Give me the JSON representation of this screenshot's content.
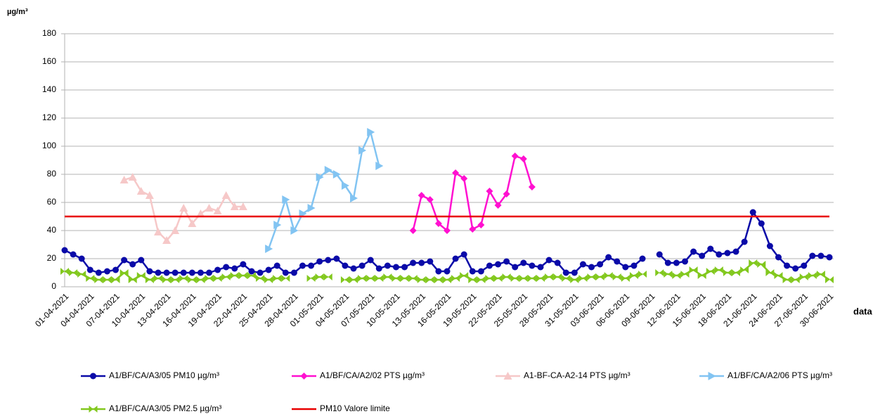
{
  "chart_data": {
    "type": "line",
    "y_label": "µg/m³",
    "x_label": "data",
    "categories": [
      "01-04-2021",
      null,
      null,
      "04-04-2021",
      null,
      null,
      "07-04-2021",
      null,
      null,
      "10-04-2021",
      null,
      null,
      "13-04-2021",
      null,
      null,
      "16-04-2021",
      null,
      null,
      "19-04-2021",
      null,
      null,
      "22-04-2021",
      null,
      null,
      "25-04-2021",
      null,
      null,
      "28-04-2021",
      null,
      null,
      "01-05-2021",
      null,
      null,
      "04-05-2021",
      null,
      null,
      "07-05-2021",
      null,
      null,
      "10-05-2021",
      null,
      null,
      "13-05-2021",
      null,
      null,
      "16-05-2021",
      null,
      null,
      "19-05-2021",
      null,
      null,
      "22-05-2021",
      null,
      null,
      "25-05-2021",
      null,
      null,
      "28-05-2021",
      null,
      null,
      "31-05-2021",
      null,
      null,
      "03-06-2021",
      null,
      null,
      "06-06-2021",
      null,
      null,
      "09-06-2021",
      null,
      null,
      "12-06-2021",
      null,
      null,
      "15-06-2021",
      null,
      null,
      "18-06-2021",
      null,
      null,
      "21-06-2021",
      null,
      null,
      "24-06-2021",
      null,
      null,
      "27-06-2021",
      null,
      null,
      "30-06-2021"
    ],
    "ylim": [
      0,
      180
    ],
    "yticks": [
      0,
      20,
      40,
      60,
      80,
      100,
      120,
      140,
      160,
      180
    ],
    "grid": true,
    "series": [
      {
        "name": "A1/BF/CA/A3/05 PM10 µg/m³",
        "color": "#0a0aa8",
        "marker": "circle",
        "values": [
          26,
          23,
          20,
          12,
          10,
          11,
          12,
          19,
          16,
          19,
          11,
          10,
          10,
          10,
          10,
          10,
          10,
          10,
          12,
          14,
          13,
          16,
          11,
          10,
          12,
          15,
          10,
          10,
          15,
          15,
          18,
          19,
          20,
          15,
          13,
          15,
          19,
          13,
          15,
          14,
          14,
          17,
          17,
          18,
          11,
          11,
          20,
          23,
          11,
          11,
          15,
          16,
          18,
          14,
          17,
          15,
          14,
          19,
          17,
          10,
          10,
          16,
          14,
          16,
          21,
          18,
          14,
          15,
          20,
          null,
          23,
          17,
          17,
          18,
          25,
          22,
          27,
          23,
          24,
          25,
          32,
          53,
          45,
          29,
          21,
          15,
          13,
          15,
          22,
          22,
          21
        ]
      },
      {
        "name": "A1/BF/CA/A2/02 PTS µg/m³",
        "color": "#ff10d0",
        "marker": "diamond",
        "values": [
          null,
          null,
          null,
          null,
          null,
          null,
          null,
          null,
          null,
          null,
          null,
          null,
          null,
          null,
          null,
          null,
          null,
          null,
          null,
          null,
          null,
          null,
          null,
          null,
          null,
          null,
          null,
          null,
          null,
          null,
          null,
          null,
          null,
          null,
          null,
          null,
          null,
          null,
          null,
          null,
          null,
          40,
          65,
          62,
          45,
          40,
          81,
          77,
          41,
          44,
          68,
          58,
          66,
          93,
          91,
          71,
          null,
          null,
          null,
          null,
          null,
          null,
          null,
          null,
          null,
          null,
          null,
          null,
          null,
          null,
          null,
          null,
          null,
          null,
          null,
          null,
          null,
          null,
          null,
          null,
          null,
          null,
          null,
          null,
          null,
          null,
          null,
          null,
          null,
          null,
          null
        ]
      },
      {
        "name": "A1-BF-CA-A2-14 PTS µg/m³",
        "color": "#f6c8c8",
        "marker": "triangle-up",
        "values": [
          null,
          null,
          null,
          null,
          null,
          null,
          null,
          76,
          78,
          68,
          65,
          39,
          33,
          40,
          56,
          45,
          52,
          56,
          54,
          65,
          57,
          57,
          null,
          null,
          null,
          null,
          null,
          null,
          null,
          null,
          null,
          null,
          null,
          null,
          null,
          null,
          null,
          null,
          null,
          null,
          null,
          null,
          null,
          null,
          null,
          null,
          null,
          null,
          null,
          null,
          null,
          null,
          null,
          null,
          null,
          null,
          null,
          null,
          null,
          null,
          null,
          null,
          null,
          null,
          null,
          null,
          null,
          null,
          null,
          null,
          null,
          null,
          null,
          null,
          null,
          null,
          null,
          null,
          null,
          null,
          null,
          null,
          null,
          null,
          null,
          null,
          null,
          null,
          null,
          null,
          null
        ]
      },
      {
        "name": "A1/BF/CA/A2/06 PTS µg/m³",
        "color": "#82c4f2",
        "marker": "triangle-right",
        "values": [
          null,
          null,
          null,
          null,
          null,
          null,
          null,
          null,
          null,
          null,
          null,
          null,
          null,
          null,
          null,
          null,
          null,
          null,
          null,
          null,
          null,
          null,
          null,
          null,
          27,
          44,
          62,
          40,
          52,
          56,
          78,
          83,
          80,
          72,
          63,
          97,
          110,
          86,
          null,
          null,
          null,
          null,
          null,
          null,
          null,
          null,
          null,
          null,
          null,
          null,
          null,
          null,
          null,
          null,
          null,
          null,
          null,
          null,
          null,
          null,
          null,
          null,
          null,
          null,
          null,
          null,
          null,
          null,
          null,
          null,
          null,
          null,
          null,
          null,
          null,
          null,
          null,
          null,
          null,
          null,
          null,
          null,
          null,
          null,
          null,
          null,
          null,
          null,
          null,
          null,
          null
        ]
      },
      {
        "name": "A1/BF/CA/A3/05 PM2.5 µg/m³",
        "color": "#82c81e",
        "marker": "bowtie",
        "values": [
          11,
          10,
          9,
          6,
          5,
          5,
          5,
          10,
          5,
          8,
          5,
          6,
          5,
          5,
          6,
          5,
          5,
          6,
          6,
          7,
          8,
          8,
          8,
          6,
          5,
          6,
          6,
          null,
          null,
          6,
          7,
          7,
          null,
          5,
          5,
          6,
          6,
          6,
          7,
          6,
          6,
          6,
          5,
          5,
          5,
          5,
          6,
          8,
          5,
          5,
          6,
          6,
          7,
          6,
          6,
          6,
          6,
          7,
          7,
          6,
          5,
          6,
          7,
          7,
          8,
          7,
          6,
          8,
          9,
          null,
          10,
          9,
          8,
          9,
          12,
          8,
          11,
          12,
          10,
          10,
          12,
          17,
          16,
          10,
          8,
          5,
          5,
          7,
          8,
          9,
          5
        ]
      },
      {
        "name": "PM10 Valore limite",
        "color": "#e80000",
        "marker": "none",
        "values": [
          50,
          50,
          50,
          50,
          50,
          50,
          50,
          50,
          50,
          50,
          50,
          50,
          50,
          50,
          50,
          50,
          50,
          50,
          50,
          50,
          50,
          50,
          50,
          50,
          50,
          50,
          50,
          50,
          50,
          50,
          50,
          50,
          50,
          50,
          50,
          50,
          50,
          50,
          50,
          50,
          50,
          50,
          50,
          50,
          50,
          50,
          50,
          50,
          50,
          50,
          50,
          50,
          50,
          50,
          50,
          50,
          50,
          50,
          50,
          50,
          50,
          50,
          50,
          50,
          50,
          50,
          50,
          50,
          50,
          50,
          50,
          50,
          50,
          50,
          50,
          50,
          50,
          50,
          50,
          50,
          50,
          50,
          50,
          50,
          50,
          50,
          50,
          50,
          50,
          50,
          50
        ]
      }
    ]
  }
}
